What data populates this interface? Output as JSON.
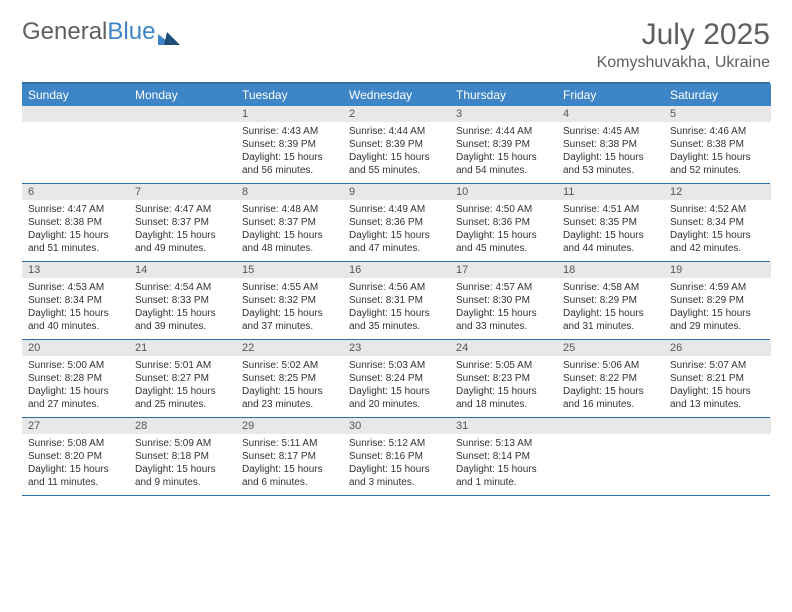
{
  "logo": {
    "text1": "General",
    "text2": "Blue"
  },
  "title": {
    "month": "July 2025",
    "location": "Komyshuvakha, Ukraine"
  },
  "colors": {
    "header_bg": "#3d85c6",
    "header_text": "#ffffff",
    "border": "#2f6fa7",
    "daynum_bg": "#e8e8e8",
    "body_text": "#333333",
    "title_text": "#5f5f5f"
  },
  "day_headers": [
    "Sunday",
    "Monday",
    "Tuesday",
    "Wednesday",
    "Thursday",
    "Friday",
    "Saturday"
  ],
  "weeks": [
    [
      {
        "n": "",
        "sr": "",
        "ss": "",
        "dl1": "",
        "dl2": ""
      },
      {
        "n": "",
        "sr": "",
        "ss": "",
        "dl1": "",
        "dl2": ""
      },
      {
        "n": "1",
        "sr": "Sunrise: 4:43 AM",
        "ss": "Sunset: 8:39 PM",
        "dl1": "Daylight: 15 hours",
        "dl2": "and 56 minutes."
      },
      {
        "n": "2",
        "sr": "Sunrise: 4:44 AM",
        "ss": "Sunset: 8:39 PM",
        "dl1": "Daylight: 15 hours",
        "dl2": "and 55 minutes."
      },
      {
        "n": "3",
        "sr": "Sunrise: 4:44 AM",
        "ss": "Sunset: 8:39 PM",
        "dl1": "Daylight: 15 hours",
        "dl2": "and 54 minutes."
      },
      {
        "n": "4",
        "sr": "Sunrise: 4:45 AM",
        "ss": "Sunset: 8:38 PM",
        "dl1": "Daylight: 15 hours",
        "dl2": "and 53 minutes."
      },
      {
        "n": "5",
        "sr": "Sunrise: 4:46 AM",
        "ss": "Sunset: 8:38 PM",
        "dl1": "Daylight: 15 hours",
        "dl2": "and 52 minutes."
      }
    ],
    [
      {
        "n": "6",
        "sr": "Sunrise: 4:47 AM",
        "ss": "Sunset: 8:38 PM",
        "dl1": "Daylight: 15 hours",
        "dl2": "and 51 minutes."
      },
      {
        "n": "7",
        "sr": "Sunrise: 4:47 AM",
        "ss": "Sunset: 8:37 PM",
        "dl1": "Daylight: 15 hours",
        "dl2": "and 49 minutes."
      },
      {
        "n": "8",
        "sr": "Sunrise: 4:48 AM",
        "ss": "Sunset: 8:37 PM",
        "dl1": "Daylight: 15 hours",
        "dl2": "and 48 minutes."
      },
      {
        "n": "9",
        "sr": "Sunrise: 4:49 AM",
        "ss": "Sunset: 8:36 PM",
        "dl1": "Daylight: 15 hours",
        "dl2": "and 47 minutes."
      },
      {
        "n": "10",
        "sr": "Sunrise: 4:50 AM",
        "ss": "Sunset: 8:36 PM",
        "dl1": "Daylight: 15 hours",
        "dl2": "and 45 minutes."
      },
      {
        "n": "11",
        "sr": "Sunrise: 4:51 AM",
        "ss": "Sunset: 8:35 PM",
        "dl1": "Daylight: 15 hours",
        "dl2": "and 44 minutes."
      },
      {
        "n": "12",
        "sr": "Sunrise: 4:52 AM",
        "ss": "Sunset: 8:34 PM",
        "dl1": "Daylight: 15 hours",
        "dl2": "and 42 minutes."
      }
    ],
    [
      {
        "n": "13",
        "sr": "Sunrise: 4:53 AM",
        "ss": "Sunset: 8:34 PM",
        "dl1": "Daylight: 15 hours",
        "dl2": "and 40 minutes."
      },
      {
        "n": "14",
        "sr": "Sunrise: 4:54 AM",
        "ss": "Sunset: 8:33 PM",
        "dl1": "Daylight: 15 hours",
        "dl2": "and 39 minutes."
      },
      {
        "n": "15",
        "sr": "Sunrise: 4:55 AM",
        "ss": "Sunset: 8:32 PM",
        "dl1": "Daylight: 15 hours",
        "dl2": "and 37 minutes."
      },
      {
        "n": "16",
        "sr": "Sunrise: 4:56 AM",
        "ss": "Sunset: 8:31 PM",
        "dl1": "Daylight: 15 hours",
        "dl2": "and 35 minutes."
      },
      {
        "n": "17",
        "sr": "Sunrise: 4:57 AM",
        "ss": "Sunset: 8:30 PM",
        "dl1": "Daylight: 15 hours",
        "dl2": "and 33 minutes."
      },
      {
        "n": "18",
        "sr": "Sunrise: 4:58 AM",
        "ss": "Sunset: 8:29 PM",
        "dl1": "Daylight: 15 hours",
        "dl2": "and 31 minutes."
      },
      {
        "n": "19",
        "sr": "Sunrise: 4:59 AM",
        "ss": "Sunset: 8:29 PM",
        "dl1": "Daylight: 15 hours",
        "dl2": "and 29 minutes."
      }
    ],
    [
      {
        "n": "20",
        "sr": "Sunrise: 5:00 AM",
        "ss": "Sunset: 8:28 PM",
        "dl1": "Daylight: 15 hours",
        "dl2": "and 27 minutes."
      },
      {
        "n": "21",
        "sr": "Sunrise: 5:01 AM",
        "ss": "Sunset: 8:27 PM",
        "dl1": "Daylight: 15 hours",
        "dl2": "and 25 minutes."
      },
      {
        "n": "22",
        "sr": "Sunrise: 5:02 AM",
        "ss": "Sunset: 8:25 PM",
        "dl1": "Daylight: 15 hours",
        "dl2": "and 23 minutes."
      },
      {
        "n": "23",
        "sr": "Sunrise: 5:03 AM",
        "ss": "Sunset: 8:24 PM",
        "dl1": "Daylight: 15 hours",
        "dl2": "and 20 minutes."
      },
      {
        "n": "24",
        "sr": "Sunrise: 5:05 AM",
        "ss": "Sunset: 8:23 PM",
        "dl1": "Daylight: 15 hours",
        "dl2": "and 18 minutes."
      },
      {
        "n": "25",
        "sr": "Sunrise: 5:06 AM",
        "ss": "Sunset: 8:22 PM",
        "dl1": "Daylight: 15 hours",
        "dl2": "and 16 minutes."
      },
      {
        "n": "26",
        "sr": "Sunrise: 5:07 AM",
        "ss": "Sunset: 8:21 PM",
        "dl1": "Daylight: 15 hours",
        "dl2": "and 13 minutes."
      }
    ],
    [
      {
        "n": "27",
        "sr": "Sunrise: 5:08 AM",
        "ss": "Sunset: 8:20 PM",
        "dl1": "Daylight: 15 hours",
        "dl2": "and 11 minutes."
      },
      {
        "n": "28",
        "sr": "Sunrise: 5:09 AM",
        "ss": "Sunset: 8:18 PM",
        "dl1": "Daylight: 15 hours",
        "dl2": "and 9 minutes."
      },
      {
        "n": "29",
        "sr": "Sunrise: 5:11 AM",
        "ss": "Sunset: 8:17 PM",
        "dl1": "Daylight: 15 hours",
        "dl2": "and 6 minutes."
      },
      {
        "n": "30",
        "sr": "Sunrise: 5:12 AM",
        "ss": "Sunset: 8:16 PM",
        "dl1": "Daylight: 15 hours",
        "dl2": "and 3 minutes."
      },
      {
        "n": "31",
        "sr": "Sunrise: 5:13 AM",
        "ss": "Sunset: 8:14 PM",
        "dl1": "Daylight: 15 hours",
        "dl2": "and 1 minute."
      },
      {
        "n": "",
        "sr": "",
        "ss": "",
        "dl1": "",
        "dl2": ""
      },
      {
        "n": "",
        "sr": "",
        "ss": "",
        "dl1": "",
        "dl2": ""
      }
    ]
  ]
}
